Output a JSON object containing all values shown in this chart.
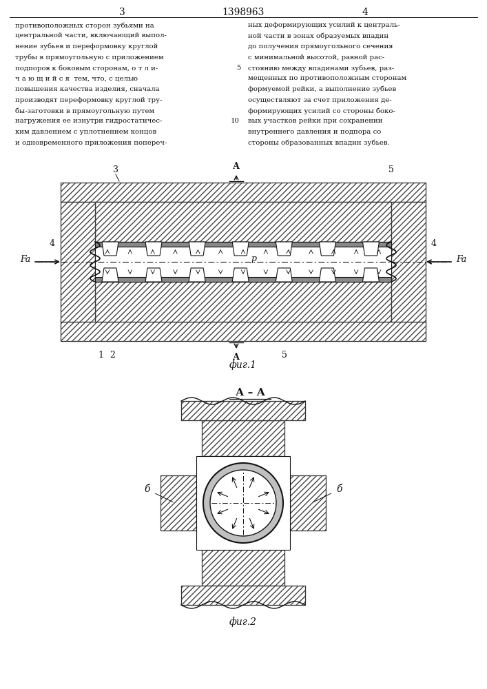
{
  "text_color": "#111111",
  "hatch_color": "#444444",
  "line_color": "#111111",
  "page_number_left": "3",
  "patent_number": "1398963",
  "page_number_right": "4",
  "col_left_lines": [
    "противоположных сторон зубьями на",
    "центральной части, включающий выпол-",
    "нение зубьев и переформовку круглой",
    "трубы в прямоугольную с приложением",
    "подпоров к боковым сторонам, о т л и-",
    "ч а ю щ и й с я  тем, что, с целью",
    "повышения качества изделия, сначала",
    "производят переформовку круглой тру-",
    "бы-заготовки в прямоугольную путем",
    "нагружения ее изнутри гидростатичес-",
    "ким давлением с уплотнением концов",
    "и одновременного приложения попереч-"
  ],
  "col_right_lines": [
    "ных деформирующих усилий к централь-",
    "ной части в зонах образуемых впадин",
    "до получения прямоугольного сечения",
    "с минимальной высотой, равной рас-",
    "стоянию между впадинами зубьев, раз-",
    "мещенных по противоположным сторонам",
    "формуемой рейки, а выполнение зубьев",
    "осуществляют за счет приложения де-",
    "формирующих усилий со стороны боко-",
    "вых участков рейки при сохранении",
    "внутреннего давления и подпора со",
    "стороны образованных впадин зубьев."
  ],
  "fig1_label": "фиг.1",
  "fig2_label": "фиг.2",
  "fig2_title": "А – А",
  "label_3": "3",
  "label_4_left": "4",
  "label_4_right": "4",
  "label_5_top": "5",
  "label_5_bottom": "5",
  "label_1": "1",
  "label_2": "2",
  "label_p": "р",
  "label_Fa_left": "Fa",
  "label_Fa_right": "Fa",
  "label_b_left": "б",
  "label_b_right": "б"
}
